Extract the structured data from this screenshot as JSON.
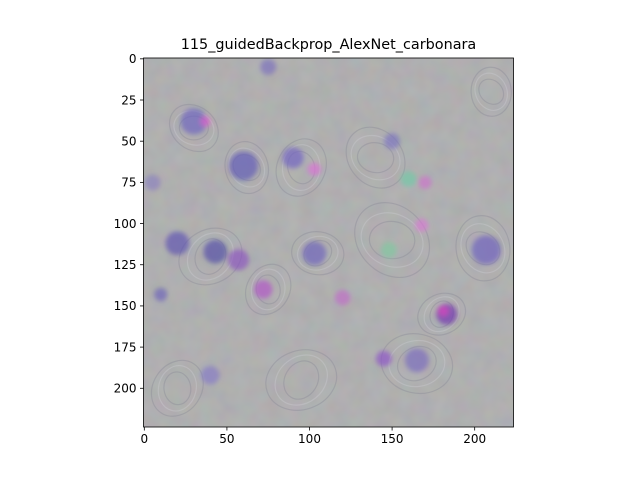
{
  "figure": {
    "title": "115_guidedBackprop_AlexNet_carbonara",
    "image_shape": [
      224,
      224
    ],
    "background_color": "#a3a3a3",
    "x_axis": {
      "ticks": [
        0,
        50,
        100,
        150,
        200
      ],
      "range": [
        -0.5,
        223.5
      ]
    },
    "y_axis": {
      "ticks": [
        0,
        25,
        50,
        75,
        100,
        125,
        150,
        175,
        200
      ],
      "range": [
        -0.5,
        223.5
      ],
      "inverted": true
    }
  },
  "blobs": [
    {
      "x": 75,
      "y": 5,
      "r": 6,
      "color": "#7a6fbf"
    },
    {
      "x": 30,
      "y": 38,
      "r": 10,
      "color": "#6a5fc0"
    },
    {
      "x": 37,
      "y": 38,
      "r": 4,
      "color": "#e060d0"
    },
    {
      "x": 60,
      "y": 65,
      "r": 11,
      "color": "#5c55b8"
    },
    {
      "x": 90,
      "y": 60,
      "r": 8,
      "color": "#6f5fc4"
    },
    {
      "x": 103,
      "y": 67,
      "r": 5,
      "color": "#e070d8"
    },
    {
      "x": 150,
      "y": 50,
      "r": 6,
      "color": "#7a70c0"
    },
    {
      "x": 160,
      "y": 73,
      "r": 6,
      "color": "#6ec9a8"
    },
    {
      "x": 170,
      "y": 75,
      "r": 5,
      "color": "#d070d0"
    },
    {
      "x": 20,
      "y": 112,
      "r": 9,
      "color": "#5a4fb0"
    },
    {
      "x": 43,
      "y": 117,
      "r": 9,
      "color": "#4f4aa8"
    },
    {
      "x": 57,
      "y": 122,
      "r": 8,
      "color": "#8a4fc0"
    },
    {
      "x": 103,
      "y": 118,
      "r": 9,
      "color": "#6a60bb"
    },
    {
      "x": 148,
      "y": 116,
      "r": 6,
      "color": "#7ec9a0"
    },
    {
      "x": 168,
      "y": 101,
      "r": 5,
      "color": "#d878d6"
    },
    {
      "x": 207,
      "y": 116,
      "r": 11,
      "color": "#6a5cc0"
    },
    {
      "x": 72,
      "y": 140,
      "r": 7,
      "color": "#b050c8"
    },
    {
      "x": 120,
      "y": 145,
      "r": 6,
      "color": "#c068c8"
    },
    {
      "x": 183,
      "y": 155,
      "r": 8,
      "color": "#6e2cb0"
    },
    {
      "x": 181,
      "y": 153,
      "r": 4,
      "color": "#e040c0"
    },
    {
      "x": 145,
      "y": 182,
      "r": 6,
      "color": "#8a50c8"
    },
    {
      "x": 165,
      "y": 183,
      "r": 9,
      "color": "#7868c0"
    },
    {
      "x": 40,
      "y": 192,
      "r": 7,
      "color": "#8478c6"
    },
    {
      "x": 10,
      "y": 143,
      "r": 5,
      "color": "#6a5fbb"
    },
    {
      "x": 5,
      "y": 75,
      "r": 6,
      "color": "#8a80c0"
    }
  ],
  "swirls": [
    {
      "x": 30,
      "y": 42,
      "r": 16
    },
    {
      "x": 62,
      "y": 66,
      "r": 16
    },
    {
      "x": 95,
      "y": 66,
      "r": 18
    },
    {
      "x": 40,
      "y": 120,
      "r": 20
    },
    {
      "x": 105,
      "y": 118,
      "r": 16
    },
    {
      "x": 150,
      "y": 110,
      "r": 25
    },
    {
      "x": 205,
      "y": 115,
      "r": 20
    },
    {
      "x": 75,
      "y": 140,
      "r": 16
    },
    {
      "x": 180,
      "y": 155,
      "r": 15
    },
    {
      "x": 165,
      "y": 185,
      "r": 22
    },
    {
      "x": 140,
      "y": 60,
      "r": 20
    },
    {
      "x": 210,
      "y": 20,
      "r": 15
    },
    {
      "x": 20,
      "y": 200,
      "r": 18
    },
    {
      "x": 95,
      "y": 195,
      "r": 22
    }
  ]
}
